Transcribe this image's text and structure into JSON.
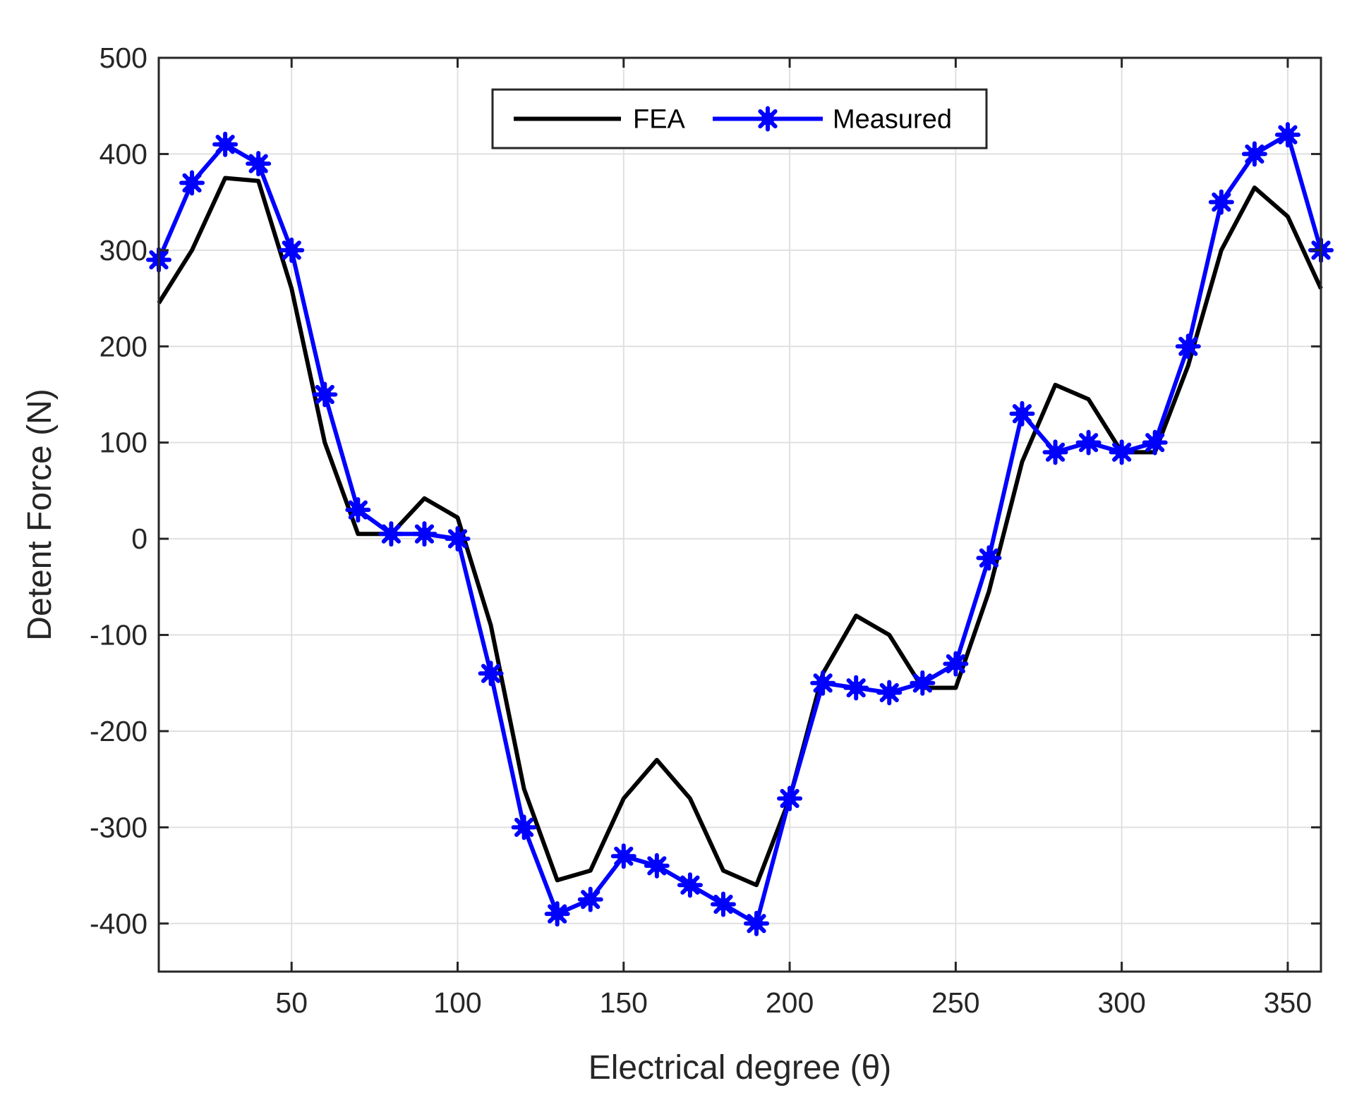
{
  "chart_data": {
    "type": "line",
    "xlabel": "Electrical degree (θ)",
    "ylabel": "Detent Force (N)",
    "xlim": [
      10,
      360
    ],
    "ylim": [
      -450,
      500
    ],
    "xticks": [
      50,
      100,
      150,
      200,
      250,
      300,
      350
    ],
    "yticks": [
      -400,
      -300,
      -200,
      -100,
      0,
      100,
      200,
      300,
      400,
      500
    ],
    "grid": true,
    "legend_position": "top-center",
    "series": [
      {
        "name": "FEA",
        "color": "#000000",
        "marker": "none",
        "x": [
          10,
          20,
          30,
          40,
          50,
          60,
          70,
          80,
          90,
          100,
          110,
          120,
          130,
          140,
          150,
          160,
          170,
          180,
          190,
          200,
          210,
          220,
          230,
          240,
          250,
          260,
          270,
          280,
          290,
          300,
          310,
          320,
          330,
          340,
          350,
          360
        ],
        "values": [
          245,
          300,
          375,
          372,
          260,
          100,
          5,
          5,
          42,
          22,
          -90,
          -260,
          -355,
          -345,
          -270,
          -230,
          -270,
          -345,
          -360,
          -270,
          -140,
          -80,
          -100,
          -155,
          -155,
          -55,
          80,
          160,
          145,
          90,
          90,
          180,
          300,
          365,
          335,
          260
        ]
      },
      {
        "name": "Measured",
        "color": "#0000ff",
        "marker": "star",
        "x": [
          10,
          20,
          30,
          40,
          50,
          60,
          70,
          80,
          90,
          100,
          110,
          120,
          130,
          140,
          150,
          160,
          170,
          180,
          190,
          200,
          210,
          220,
          230,
          240,
          250,
          260,
          270,
          280,
          290,
          300,
          310,
          320,
          330,
          340,
          350,
          360
        ],
        "values": [
          290,
          370,
          410,
          390,
          300,
          150,
          30,
          5,
          5,
          0,
          -140,
          -300,
          -390,
          -375,
          -330,
          -340,
          -360,
          -380,
          -400,
          -270,
          -150,
          -155,
          -160,
          -150,
          -130,
          -20,
          130,
          90,
          100,
          90,
          100,
          200,
          350,
          400,
          420,
          300
        ]
      }
    ]
  }
}
